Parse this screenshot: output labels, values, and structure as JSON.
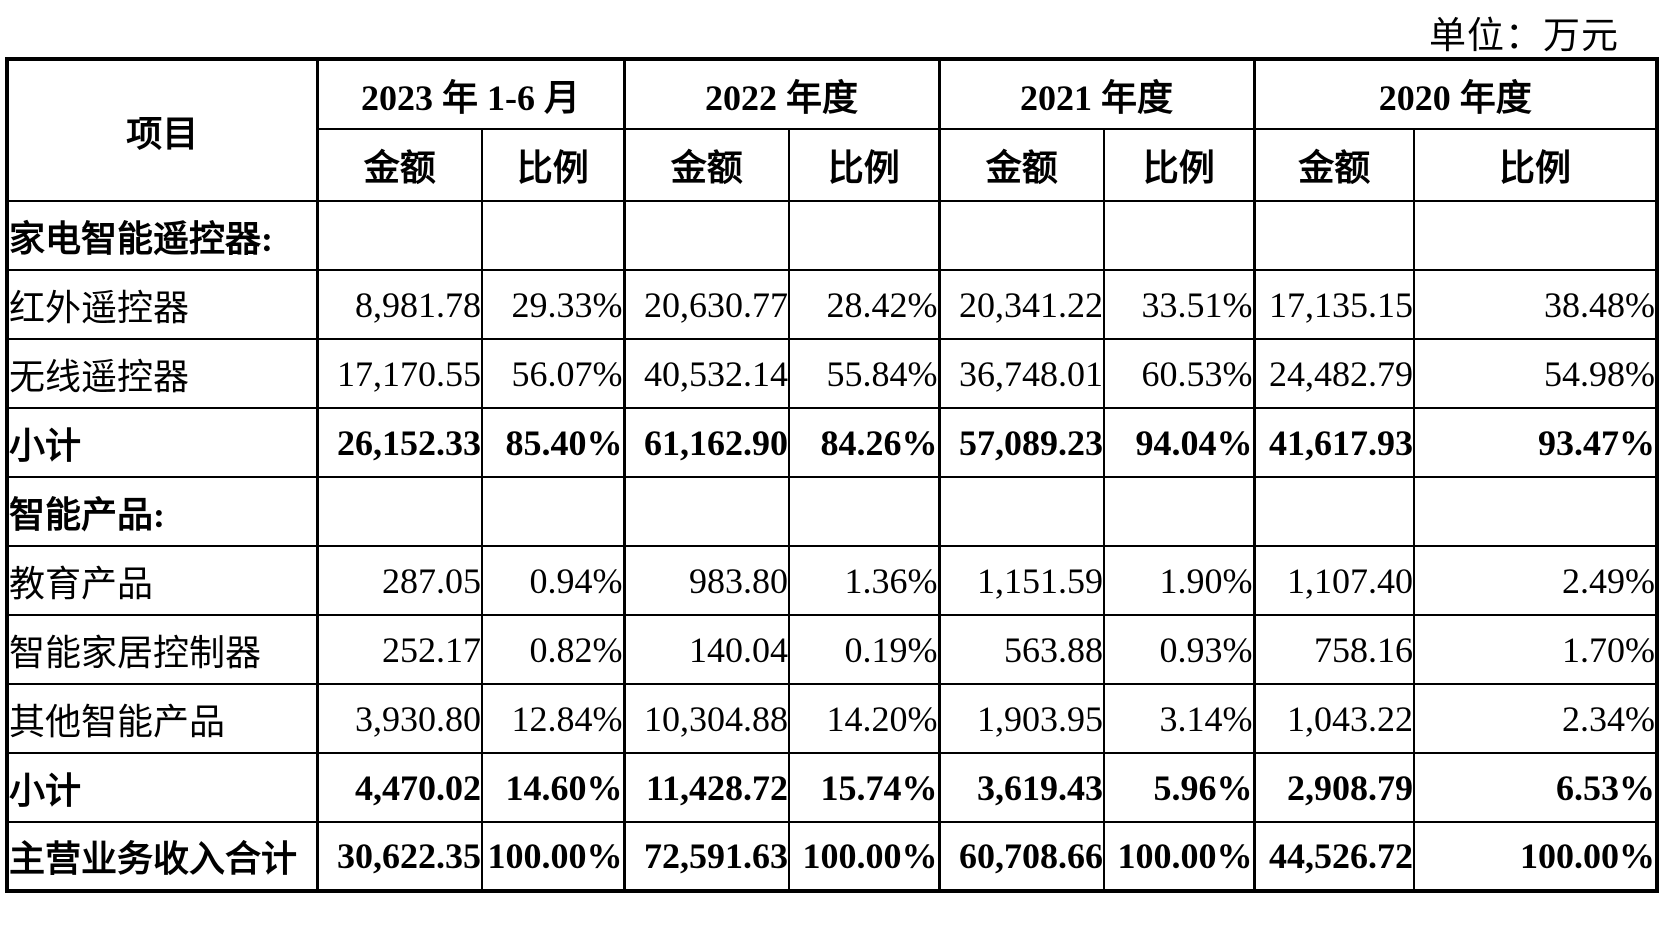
{
  "unit_label": "单位：万元",
  "table": {
    "corner_header": "项目",
    "periods": [
      {
        "label": "2023 年 1-6 月"
      },
      {
        "label": "2022 年度"
      },
      {
        "label": "2021 年度"
      },
      {
        "label": "2020 年度"
      }
    ],
    "amount_header": "金额",
    "ratio_header": "比例",
    "rows": [
      {
        "label": "家电智能遥控器:",
        "cells": [
          "",
          "",
          "",
          "",
          "",
          "",
          "",
          ""
        ]
      },
      {
        "label": "红外遥控器",
        "cells": [
          "8,981.78",
          "29.33%",
          "20,630.77",
          "28.42%",
          "20,341.22",
          "33.51%",
          "17,135.15",
          "38.48%"
        ]
      },
      {
        "label": "无线遥控器",
        "cells": [
          "17,170.55",
          "56.07%",
          "40,532.14",
          "55.84%",
          "36,748.01",
          "60.53%",
          "24,482.79",
          "54.98%"
        ]
      },
      {
        "label": "小计",
        "cells": [
          "26,152.33",
          "85.40%",
          "61,162.90",
          "84.26%",
          "57,089.23",
          "94.04%",
          "41,617.93",
          "93.47%"
        ]
      },
      {
        "label": "智能产品:",
        "cells": [
          "",
          "",
          "",
          "",
          "",
          "",
          "",
          ""
        ]
      },
      {
        "label": "教育产品",
        "cells": [
          "287.05",
          "0.94%",
          "983.80",
          "1.36%",
          "1,151.59",
          "1.90%",
          "1,107.40",
          "2.49%"
        ]
      },
      {
        "label": "智能家居控制器",
        "cells": [
          "252.17",
          "0.82%",
          "140.04",
          "0.19%",
          "563.88",
          "0.93%",
          "758.16",
          "1.70%"
        ]
      },
      {
        "label": "其他智能产品",
        "cells": [
          "3,930.80",
          "12.84%",
          "10,304.88",
          "14.20%",
          "1,903.95",
          "3.14%",
          "1,043.22",
          "2.34%"
        ]
      },
      {
        "label": "小计",
        "cells": [
          "4,470.02",
          "14.60%",
          "11,428.72",
          "15.74%",
          "3,619.43",
          "5.96%",
          "2,908.79",
          "6.53%"
        ]
      },
      {
        "label": "主营业务收入合计",
        "cells": [
          "30,622.35",
          "100.00%",
          "72,591.63",
          "100.00%",
          "60,708.66",
          "100.00%",
          "44,526.72",
          "100.00%"
        ]
      }
    ]
  }
}
